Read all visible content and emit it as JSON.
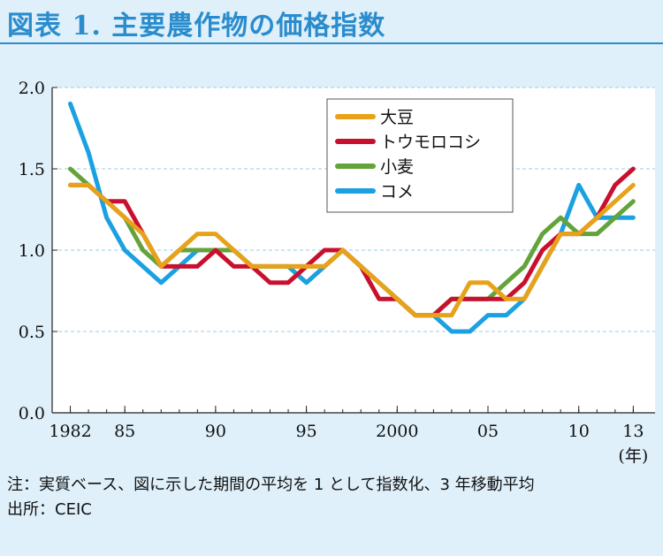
{
  "title": "図表 1. 主要農作物の価格指数",
  "note_label": "注：",
  "note_text": "実質ベース、図に示した期間の平均を 1 として指数化、3 年移動平均",
  "source_label": "出所：",
  "source_text": "CEIC",
  "chart_data": {
    "type": "line",
    "title": "",
    "xlabel": "",
    "ylabel": "",
    "x_unit_label": "(年)",
    "x": [
      1982,
      1983,
      1984,
      1985,
      1986,
      1987,
      1988,
      1989,
      1990,
      1991,
      1992,
      1993,
      1994,
      1995,
      1996,
      1997,
      1998,
      1999,
      2000,
      2001,
      2002,
      2003,
      2004,
      2005,
      2006,
      2007,
      2008,
      2009,
      2010,
      2011,
      2012,
      2013
    ],
    "xticks": [
      1982,
      1985,
      1990,
      1995,
      2000,
      2005,
      2010,
      2013
    ],
    "xtick_labels": [
      "1982",
      "85",
      "90",
      "95",
      "2000",
      "05",
      "10",
      "13"
    ],
    "ylim": [
      0,
      2.0
    ],
    "yticks": [
      0.0,
      0.5,
      1.0,
      1.5,
      2.0
    ],
    "ytick_labels": [
      "0.0",
      "0.5",
      "1.0",
      "1.5",
      "2.0"
    ],
    "grid": "horizontal-dashed",
    "legend_position": "top-center",
    "series": [
      {
        "name": "大豆",
        "color": "#e8a21a",
        "values": [
          1.4,
          1.4,
          1.3,
          1.2,
          1.1,
          0.9,
          1.0,
          1.1,
          1.1,
          1.0,
          0.9,
          0.9,
          0.9,
          0.9,
          0.9,
          1.0,
          0.9,
          0.8,
          0.7,
          0.6,
          0.6,
          0.6,
          0.8,
          0.8,
          0.7,
          0.7,
          0.9,
          1.1,
          1.1,
          1.2,
          1.3,
          1.4
        ]
      },
      {
        "name": "トウモロコシ",
        "color": "#c8102e",
        "values": [
          1.4,
          1.4,
          1.3,
          1.3,
          1.1,
          0.9,
          0.9,
          0.9,
          1.0,
          0.9,
          0.9,
          0.8,
          0.8,
          0.9,
          1.0,
          1.0,
          0.9,
          0.7,
          0.7,
          0.6,
          0.6,
          0.7,
          0.7,
          0.7,
          0.7,
          0.8,
          1.0,
          1.1,
          1.1,
          1.2,
          1.4,
          1.5
        ]
      },
      {
        "name": "小麦",
        "color": "#63a33a",
        "values": [
          1.5,
          1.4,
          1.3,
          1.2,
          1.0,
          0.9,
          1.0,
          1.0,
          1.0,
          1.0,
          0.9,
          0.9,
          0.9,
          0.9,
          0.9,
          1.0,
          0.9,
          0.8,
          0.7,
          0.6,
          0.6,
          0.7,
          0.7,
          0.7,
          0.8,
          0.9,
          1.1,
          1.2,
          1.1,
          1.1,
          1.2,
          1.3
        ]
      },
      {
        "name": "コメ",
        "color": "#1ba1e2",
        "values": [
          1.9,
          1.6,
          1.2,
          1.0,
          0.9,
          0.8,
          0.9,
          1.0,
          1.0,
          1.0,
          0.9,
          0.9,
          0.9,
          0.8,
          0.9,
          1.0,
          0.9,
          0.8,
          0.7,
          0.6,
          0.6,
          0.5,
          0.5,
          0.6,
          0.6,
          0.7,
          0.9,
          1.1,
          1.4,
          1.2,
          1.2,
          1.2
        ]
      }
    ]
  }
}
